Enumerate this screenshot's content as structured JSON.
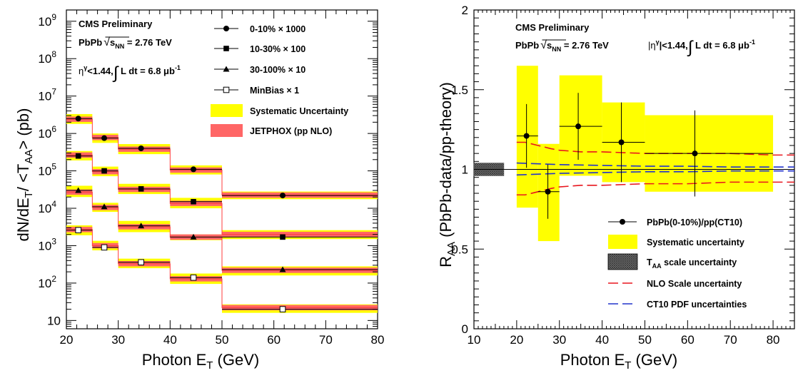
{
  "chart_data": [
    {
      "type": "scatter",
      "panel": "left",
      "x_scale": "linear",
      "y_scale": "log",
      "xlim": [
        20,
        80
      ],
      "ylim": [
        6,
        2000000000
      ],
      "xlabel": "Photon E_T (GeV)",
      "xlabel_main": "Photon E",
      "xlabel_sub": "T",
      "xlabel_unit": " (GeV)",
      "ylabel_pre": "dN/dE",
      "ylabel_sub1": "T",
      "ylabel_mid": "/ <T",
      "ylabel_sub2": "AA",
      "ylabel_post": "> (pb)",
      "x_ticks": [
        20,
        30,
        40,
        50,
        60,
        70,
        80
      ],
      "x_tick_labels": [
        "20",
        "30",
        "40",
        "50",
        "60",
        "70",
        "80"
      ],
      "y_ticks": [
        10,
        100,
        1000,
        10000,
        100000,
        1000000,
        10000000,
        100000000,
        1000000000
      ],
      "y_tick_labels": [
        "10",
        "10",
        "10",
        "10",
        "10",
        "10",
        "10",
        "10",
        "10"
      ],
      "y_tick_exponents": [
        "",
        "2",
        "3",
        "4",
        "5",
        "6",
        "7",
        "8",
        "9"
      ],
      "bin_edges": [
        20,
        25,
        30,
        40,
        50,
        80
      ],
      "annotations": {
        "line1": "CMS Preliminary",
        "line2_pre": "PbPb",
        "line2_root": "s",
        "line2_root_sub": "NN",
        "line2_post": " = 2.76 TeV",
        "line3_pre": "η",
        "line3_sup": "γ",
        "line3_mid": "<1.44,",
        "line3_int": "∫",
        "line3_post": " L dt = 6.8 μb",
        "line3_exp": "-1"
      },
      "legend": [
        {
          "label": "0-10% × 1000",
          "marker": "circle-filled"
        },
        {
          "label": "10-30% × 100",
          "marker": "square-filled"
        },
        {
          "label": "30-100% × 10",
          "marker": "triangle-filled"
        },
        {
          "label": "MinBias × 1",
          "marker": "square-open"
        },
        {
          "label": "Systematic Uncertainty",
          "marker": "box-yellow"
        },
        {
          "label": "JETPHOX (pp NLO)",
          "marker": "box-red"
        }
      ],
      "series": [
        {
          "x": [
            22.3,
            27.3,
            34.4,
            44.5,
            61.7
          ],
          "y": [
            2500000,
            750000,
            400000,
            110000,
            22000
          ],
          "theory": [
            2400000,
            780000,
            380000,
            105000,
            22500
          ],
          "syst_lo": [
            1800000,
            560000,
            280000,
            80000,
            17500
          ],
          "syst_hi": [
            3300000,
            1000000,
            520000,
            140000,
            28000
          ]
        },
        {
          "x": [
            22.3,
            27.3,
            34.4,
            44.5,
            61.7
          ],
          "y": [
            250000,
            100000,
            33000,
            15000,
            1700
          ],
          "theory": [
            265000,
            95000,
            32000,
            13500,
            2000
          ],
          "syst_lo": [
            190000,
            72000,
            24000,
            10000,
            1500
          ],
          "syst_hi": [
            340000,
            130000,
            45000,
            19000,
            2600
          ]
        },
        {
          "x": [
            22.3,
            27.3,
            34.4,
            44.5,
            61.7
          ],
          "y": [
            30000,
            11000,
            3400,
            1700,
            230
          ],
          "theory": [
            27000,
            10500,
            3200,
            1700,
            220
          ],
          "syst_lo": [
            20000,
            8000,
            2300,
            1400,
            160
          ],
          "syst_hi": [
            40000,
            14000,
            4600,
            2000,
            280
          ]
        },
        {
          "x": [
            22.3,
            27.3,
            34.4,
            44.5,
            61.7
          ],
          "y": [
            2600,
            900,
            360,
            140,
            20
          ],
          "theory": [
            2700,
            1000,
            330,
            130,
            22
          ],
          "syst_lo": [
            1900,
            750,
            250,
            95,
            16
          ],
          "syst_hi": [
            3500,
            1350,
            450,
            180,
            27
          ]
        }
      ]
    },
    {
      "type": "scatter",
      "panel": "right",
      "x_scale": "linear",
      "y_scale": "linear",
      "xlim": [
        10,
        85
      ],
      "ylim": [
        0,
        2
      ],
      "xlabel": "Photon E_T (GeV)",
      "xlabel_main": "Photon E",
      "xlabel_sub": "T",
      "xlabel_unit": " (GeV)",
      "ylabel_pre": "R",
      "ylabel_sub": "AA",
      "ylabel_post": " (PbPb-data/pp-theory)",
      "x_ticks": [
        10,
        20,
        30,
        40,
        50,
        60,
        70,
        80
      ],
      "x_tick_labels": [
        "10",
        "20",
        "30",
        "40",
        "50",
        "60",
        "70",
        "80"
      ],
      "y_ticks": [
        0,
        0.5,
        1,
        1.5,
        2
      ],
      "y_tick_labels": [
        "0",
        "0.5",
        "1",
        "1.5",
        "2"
      ],
      "annotations": {
        "line1": "CMS Preliminary",
        "line2_pre": "PbPb",
        "line2_root": "s",
        "line2_root_sub": "NN",
        "line2_post": " = 2.76 TeV",
        "line3_pre": "|η",
        "line3_sup": "γ",
        "line3_mid": "|<1.44,",
        "line3_int": "∫",
        "line3_post": " L dt = 6.8 μb",
        "line3_exp": "-1"
      },
      "legend": [
        {
          "label": "PbPb(0-10%)/pp(CT10)",
          "marker": "circle-filled"
        },
        {
          "label": "Systematic uncertainty",
          "marker": "box-yellow"
        },
        {
          "label_pre": "T",
          "label_sub": "AA",
          "label_post": " scale uncertainty",
          "marker": "box-hatched"
        },
        {
          "label": "NLO Scale uncertainty",
          "marker": "dashed-red"
        },
        {
          "label": "CT10 PDF uncertainties",
          "marker": "dashed-blue"
        }
      ],
      "points": [
        {
          "x": 22.3,
          "y": 1.21,
          "xlo": 20,
          "xhi": 25,
          "err": 0.2,
          "syst_lo": 0.76,
          "syst_hi": 1.65
        },
        {
          "x": 27.3,
          "y": 0.86,
          "xlo": 25,
          "xhi": 30,
          "err": 0.17,
          "syst_lo": 0.55,
          "syst_hi": 1.16
        },
        {
          "x": 34.4,
          "y": 1.27,
          "xlo": 30,
          "xhi": 40,
          "err": 0.21,
          "syst_lo": 0.96,
          "syst_hi": 1.59
        },
        {
          "x": 44.5,
          "y": 1.17,
          "xlo": 40,
          "xhi": 50,
          "err": 0.25,
          "syst_lo": 0.92,
          "syst_hi": 1.42
        },
        {
          "x": 61.7,
          "y": 1.1,
          "xlo": 50,
          "xhi": 80,
          "err": 0.27,
          "syst_lo": 0.86,
          "syst_hi": 1.34
        }
      ],
      "taa_box": {
        "xlo": 10,
        "xhi": 17,
        "ylo": 0.96,
        "yhi": 1.04
      },
      "nlo_upper": {
        "x": [
          20,
          22,
          25,
          28,
          30,
          35,
          40,
          50,
          60,
          70,
          80,
          85
        ],
        "y": [
          1.17,
          1.17,
          1.15,
          1.13,
          1.12,
          1.11,
          1.11,
          1.1,
          1.1,
          1.1,
          1.09,
          1.09
        ]
      },
      "nlo_lower": {
        "x": [
          20,
          22,
          25,
          28,
          30,
          35,
          40,
          50,
          60,
          70,
          80,
          85
        ],
        "y": [
          0.84,
          0.84,
          0.86,
          0.88,
          0.89,
          0.9,
          0.9,
          0.91,
          0.91,
          0.92,
          0.92,
          0.92
        ]
      },
      "pdf_upper": {
        "x": [
          20,
          30,
          40,
          50,
          60,
          70,
          80,
          85
        ],
        "y": [
          1.04,
          1.03,
          1.025,
          1.02,
          1.02,
          1.015,
          1.015,
          1.015
        ]
      },
      "pdf_lower": {
        "x": [
          20,
          30,
          40,
          50,
          60,
          70,
          80,
          85
        ],
        "y": [
          0.965,
          0.975,
          0.98,
          0.985,
          0.985,
          0.99,
          0.99,
          0.99
        ]
      }
    }
  ]
}
